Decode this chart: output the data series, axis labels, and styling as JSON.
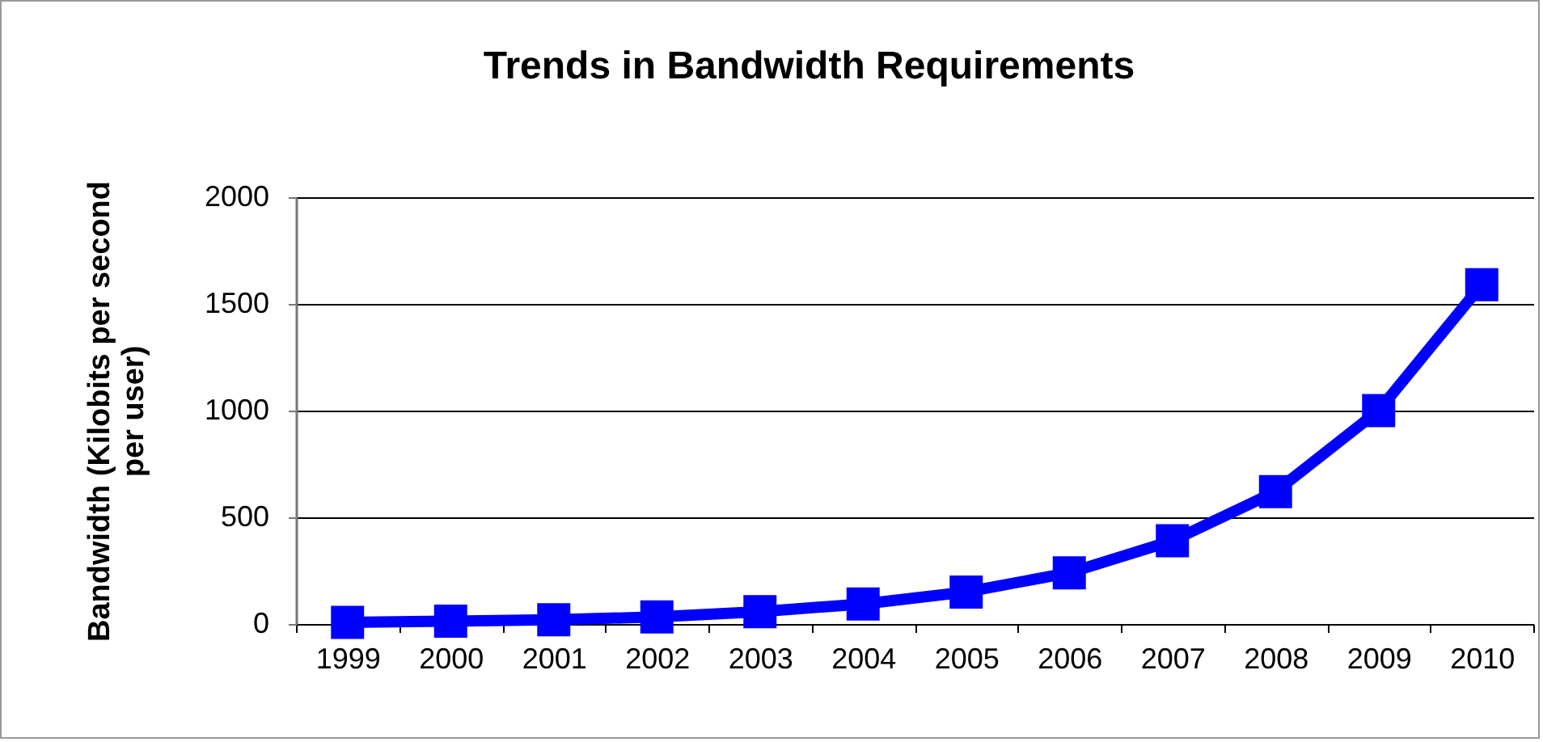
{
  "chart_data": {
    "type": "line",
    "title": "Trends in Bandwidth Requirements",
    "ylabel": "Bandwidth (Kilobits per second per user)",
    "categories": [
      "1999",
      "2000",
      "2001",
      "2002",
      "2003",
      "2004",
      "2005",
      "2006",
      "2007",
      "2008",
      "2009",
      "2010"
    ],
    "series": [
      {
        "color": "#0000ff",
        "values": [
          8,
          13,
          20,
          33,
          58,
          94,
          150,
          240,
          390,
          620,
          1000,
          1590
        ]
      }
    ],
    "ylim": [
      0,
      2000
    ],
    "yticks": [
      0,
      500,
      1000,
      1500,
      2000
    ],
    "grid": "y",
    "marker": "square",
    "line_style": "solid",
    "legend": false
  }
}
